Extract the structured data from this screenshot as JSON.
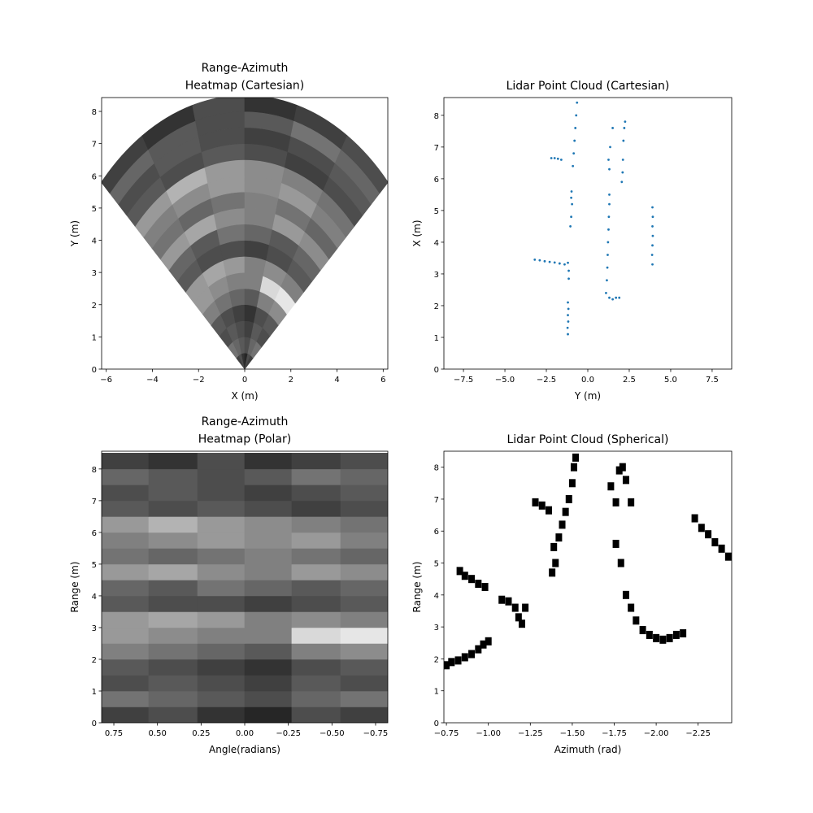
{
  "chart_data": [
    {
      "type": "polar_heatmap",
      "title": "Range-Azimuth\nHeatmap (Cartesian)",
      "xlabel": "X (m)",
      "ylabel": "Y (m)",
      "xlim": [
        -6.2,
        6.2
      ],
      "ylim": [
        0,
        8.43
      ],
      "xticks": [
        {
          "value": -6,
          "label": "−6"
        },
        {
          "value": -4,
          "label": "−4"
        },
        {
          "value": -2,
          "label": "−2"
        },
        0,
        2,
        4,
        6
      ],
      "yticks": [
        0,
        1,
        2,
        3,
        4,
        5,
        6,
        7,
        8
      ],
      "angle_edges": [
        0.82,
        0.55,
        0.27,
        0,
        -0.27,
        -0.55,
        -0.82
      ],
      "range_edges": [
        0,
        0.5,
        1,
        1.5,
        2,
        2.5,
        3,
        3.5,
        4,
        4.5,
        5,
        5.5,
        6,
        6.5,
        7,
        7.5,
        8,
        8.5
      ],
      "values": [
        [
          0.25,
          0.3,
          0.2,
          0.15,
          0.3,
          0.25
        ],
        [
          0.45,
          0.4,
          0.35,
          0.3,
          0.4,
          0.45
        ],
        [
          0.3,
          0.35,
          0.3,
          0.25,
          0.35,
          0.3
        ],
        [
          0.35,
          0.3,
          0.25,
          0.2,
          0.3,
          0.35
        ],
        [
          0.5,
          0.45,
          0.4,
          0.35,
          0.5,
          0.55
        ],
        [
          0.6,
          0.55,
          0.5,
          0.5,
          0.85,
          0.9
        ],
        [
          0.6,
          0.65,
          0.6,
          0.5,
          0.55,
          0.5
        ],
        [
          0.35,
          0.3,
          0.3,
          0.25,
          0.3,
          0.35
        ],
        [
          0.4,
          0.35,
          0.45,
          0.4,
          0.35,
          0.4
        ],
        [
          0.6,
          0.65,
          0.55,
          0.5,
          0.6,
          0.55
        ],
        [
          0.45,
          0.4,
          0.45,
          0.5,
          0.45,
          0.4
        ],
        [
          0.5,
          0.55,
          0.6,
          0.55,
          0.6,
          0.5
        ],
        [
          0.6,
          0.7,
          0.6,
          0.55,
          0.5,
          0.45
        ],
        [
          0.35,
          0.3,
          0.35,
          0.3,
          0.25,
          0.3
        ],
        [
          0.3,
          0.35,
          0.3,
          0.25,
          0.3,
          0.35
        ],
        [
          0.4,
          0.35,
          0.3,
          0.35,
          0.45,
          0.4
        ],
        [
          0.25,
          0.2,
          0.3,
          0.2,
          0.25,
          0.3
        ]
      ]
    },
    {
      "type": "scatter",
      "title": "Lidar Point Cloud (Cartesian)",
      "xlabel": "Y (m)",
      "ylabel": "X (m)",
      "color": "#1f77b4",
      "marker": "circle",
      "xlim": [
        -8.68,
        8.68
      ],
      "ylim": [
        0,
        8.56
      ],
      "xticks": [
        {
          "value": -7.5,
          "label": "−7.5"
        },
        {
          "value": -5,
          "label": "−5.0"
        },
        {
          "value": -2.5,
          "label": "−2.5"
        },
        {
          "value": 0,
          "label": "0.0"
        },
        2.5,
        {
          "value": 5,
          "label": "5.0"
        },
        7.5
      ],
      "yticks": [
        0,
        1,
        2,
        3,
        4,
        5,
        6,
        7,
        8
      ],
      "x": [
        -1.2,
        -1.22,
        -1.18,
        -1.2,
        -1.17,
        -1.2,
        -3.2,
        -2.9,
        -2.6,
        -2.3,
        -2.0,
        -1.7,
        -1.4,
        -1.2,
        -1.15,
        -1.15,
        -1.05,
        -1.0,
        -0.95,
        -1.0,
        -0.98,
        -2.2,
        -2.0,
        -1.8,
        -1.6,
        -0.9,
        -0.85,
        -0.8,
        -0.75,
        -0.7,
        -0.65,
        1.1,
        1.15,
        1.18,
        1.2,
        1.22,
        1.25,
        1.27,
        1.3,
        1.3,
        1.3,
        1.5,
        1.7,
        1.9,
        1.3,
        1.25,
        1.35,
        1.5,
        2.05,
        2.1,
        2.12,
        2.15,
        2.2,
        2.25,
        3.9,
        3.88,
        3.9,
        3.92,
        3.9,
        3.92,
        3.9
      ],
      "y": [
        1.1,
        1.3,
        1.5,
        1.7,
        1.9,
        2.1,
        3.45,
        3.43,
        3.4,
        3.38,
        3.36,
        3.33,
        3.3,
        3.35,
        2.85,
        3.1,
        4.5,
        4.8,
        5.2,
        5.4,
        5.6,
        6.65,
        6.65,
        6.63,
        6.6,
        6.4,
        6.8,
        7.2,
        7.6,
        8.0,
        8.4,
        2.4,
        2.8,
        3.2,
        3.6,
        4.0,
        4.4,
        4.8,
        5.2,
        5.5,
        2.25,
        2.2,
        2.25,
        2.25,
        6.3,
        6.6,
        7.0,
        7.6,
        5.9,
        6.2,
        6.6,
        7.2,
        7.6,
        7.8,
        3.3,
        3.6,
        3.9,
        4.2,
        4.5,
        4.8,
        5.1
      ]
    },
    {
      "type": "heatmap",
      "title": "Range-Azimuth\nHeatmap (Polar)",
      "xlabel": "Angle(radians)",
      "ylabel": "Range (m)",
      "xlim": [
        0.82,
        -0.82
      ],
      "ylim": [
        0,
        8.56
      ],
      "xticks": [
        0.75,
        {
          "value": 0.5,
          "label": "0.50"
        },
        0.25,
        {
          "value": 0,
          "label": "0.00"
        },
        {
          "value": -0.25,
          "label": "−0.25"
        },
        {
          "value": -0.5,
          "label": "−0.50"
        },
        {
          "value": -0.75,
          "label": "−0.75"
        }
      ],
      "yticks": [
        0,
        1,
        2,
        3,
        4,
        5,
        6,
        7,
        8
      ],
      "angle_edges": [
        0.82,
        0.55,
        0.27,
        0,
        -0.27,
        -0.55,
        -0.82
      ],
      "range_edges": [
        0,
        0.5,
        1,
        1.5,
        2,
        2.5,
        3,
        3.5,
        4,
        4.5,
        5,
        5.5,
        6,
        6.5,
        7,
        7.5,
        8,
        8.5
      ],
      "values": [
        [
          0.25,
          0.3,
          0.2,
          0.15,
          0.3,
          0.25
        ],
        [
          0.45,
          0.4,
          0.35,
          0.3,
          0.4,
          0.45
        ],
        [
          0.3,
          0.35,
          0.3,
          0.25,
          0.35,
          0.3
        ],
        [
          0.35,
          0.3,
          0.25,
          0.2,
          0.3,
          0.35
        ],
        [
          0.5,
          0.45,
          0.4,
          0.35,
          0.5,
          0.55
        ],
        [
          0.6,
          0.55,
          0.5,
          0.5,
          0.85,
          0.9
        ],
        [
          0.6,
          0.65,
          0.6,
          0.5,
          0.55,
          0.5
        ],
        [
          0.35,
          0.3,
          0.3,
          0.25,
          0.3,
          0.35
        ],
        [
          0.4,
          0.35,
          0.45,
          0.4,
          0.35,
          0.4
        ],
        [
          0.6,
          0.65,
          0.55,
          0.5,
          0.6,
          0.55
        ],
        [
          0.45,
          0.4,
          0.45,
          0.5,
          0.45,
          0.4
        ],
        [
          0.5,
          0.55,
          0.6,
          0.55,
          0.6,
          0.5
        ],
        [
          0.6,
          0.7,
          0.6,
          0.55,
          0.5,
          0.45
        ],
        [
          0.35,
          0.3,
          0.35,
          0.3,
          0.25,
          0.3
        ],
        [
          0.3,
          0.35,
          0.3,
          0.25,
          0.3,
          0.35
        ],
        [
          0.4,
          0.35,
          0.3,
          0.35,
          0.45,
          0.4
        ],
        [
          0.25,
          0.2,
          0.3,
          0.2,
          0.25,
          0.3
        ]
      ]
    },
    {
      "type": "scatter",
      "title": "Lidar Point Cloud (Spherical)",
      "xlabel": "Azimuth (rad)",
      "ylabel": "Range (m)",
      "color": "#000000",
      "marker": "square",
      "xlim": [
        -0.735,
        -2.45
      ],
      "ylim": [
        0,
        8.5
      ],
      "xticks": [
        {
          "value": -0.75,
          "label": "−0.75"
        },
        {
          "value": -1,
          "label": "−1.00"
        },
        {
          "value": -1.25,
          "label": "−1.25"
        },
        {
          "value": -1.5,
          "label": "−1.50"
        },
        {
          "value": -1.75,
          "label": "−1.75"
        },
        {
          "value": -2,
          "label": "−2.00"
        },
        {
          "value": -2.25,
          "label": "−2.25"
        }
      ],
      "yticks": [
        0,
        1,
        2,
        3,
        4,
        5,
        6,
        7,
        8
      ],
      "x": [
        -0.75,
        -0.78,
        -0.82,
        -0.86,
        -0.9,
        -0.94,
        -0.97,
        -1.0,
        -0.83,
        -0.86,
        -0.9,
        -0.94,
        -0.98,
        -1.08,
        -1.12,
        -1.16,
        -1.18,
        -1.2,
        -1.22,
        -1.28,
        -1.32,
        -1.36,
        -1.38,
        -1.4,
        -1.39,
        -1.42,
        -1.44,
        -1.46,
        -1.48,
        -1.5,
        -1.51,
        -1.52,
        -1.73,
        -1.76,
        -1.78,
        -1.8,
        -1.82,
        -1.85,
        -1.76,
        -1.79,
        -1.82,
        -1.85,
        -1.88,
        -1.92,
        -1.96,
        -2.0,
        -2.04,
        -2.08,
        -2.12,
        -2.16,
        -2.23,
        -2.27,
        -2.31,
        -2.35,
        -2.39,
        -2.43
      ],
      "y": [
        1.8,
        1.9,
        1.95,
        2.05,
        2.15,
        2.3,
        2.45,
        2.55,
        4.75,
        4.6,
        4.5,
        4.35,
        4.25,
        3.85,
        3.8,
        3.6,
        3.3,
        3.1,
        3.6,
        6.9,
        6.8,
        6.65,
        4.7,
        5.0,
        5.5,
        5.8,
        6.2,
        6.6,
        7.0,
        7.5,
        8.0,
        8.3,
        7.4,
        6.9,
        7.9,
        8.0,
        7.6,
        6.9,
        5.6,
        5.0,
        4.0,
        3.6,
        3.2,
        2.9,
        2.75,
        2.65,
        2.6,
        2.65,
        2.75,
        2.8,
        6.4,
        6.1,
        5.9,
        5.65,
        5.45,
        5.2
      ]
    }
  ]
}
